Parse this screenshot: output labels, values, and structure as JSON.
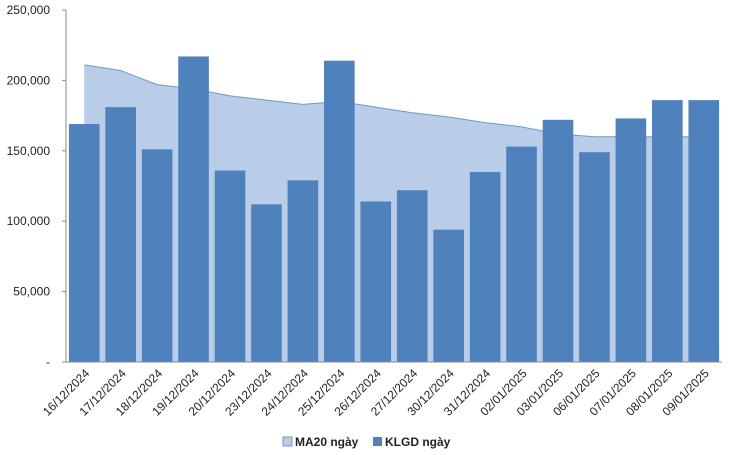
{
  "chart_data": {
    "type": "bar",
    "categories": [
      "16/12/2024",
      "17/12/2024",
      "18/12/2024",
      "19/12/2024",
      "20/12/2024",
      "23/12/2024",
      "24/12/2024",
      "25/12/2024",
      "26/12/2024",
      "27/12/2024",
      "30/12/2024",
      "31/12/2024",
      "02/01/2025",
      "03/01/2025",
      "06/01/2025",
      "07/01/2025",
      "08/01/2025",
      "09/01/2025"
    ],
    "series": [
      {
        "name": "MA20 ngày",
        "kind": "area",
        "color": "#b9cde8",
        "stroke": "#6f98c9",
        "values": [
          211000,
          207000,
          197000,
          194000,
          189000,
          186000,
          183000,
          185000,
          181000,
          177000,
          174000,
          170000,
          167000,
          162000,
          160000,
          160000,
          160000,
          160000
        ]
      },
      {
        "name": "KLGD ngày",
        "kind": "bar",
        "color": "#4f81bd",
        "values": [
          169000,
          181000,
          151000,
          217000,
          136000,
          112000,
          129000,
          214000,
          114000,
          122000,
          94000,
          135000,
          153000,
          172000,
          149000,
          173000,
          186000,
          186000
        ]
      }
    ],
    "y_ticks": [
      "-",
      "50,000",
      "100,000",
      "150,000",
      "200,000",
      "250,000"
    ],
    "ylim": [
      0,
      250000
    ],
    "grid": false,
    "legend_position": "bottom"
  }
}
